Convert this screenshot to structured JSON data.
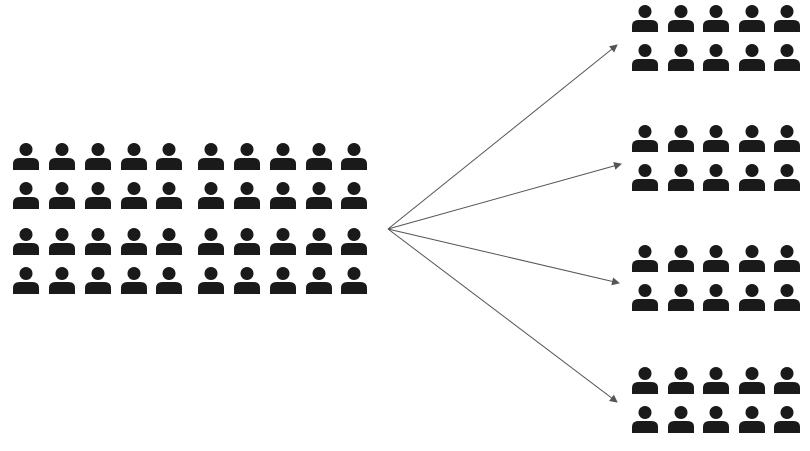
{
  "diagram": {
    "description_visible_text": "",
    "colors": {
      "background": "#ffffff",
      "person": "#1a1a1a",
      "arrow": "#555555"
    },
    "icon": "person-icon",
    "source_group": {
      "blocks": 4,
      "rows_per_block": 2,
      "columns_per_block": 5,
      "people_count": 40
    },
    "target_groups": [
      {
        "id": "group-1",
        "rows": 2,
        "columns": 5,
        "people_count": 10
      },
      {
        "id": "group-2",
        "rows": 2,
        "columns": 5,
        "people_count": 10
      },
      {
        "id": "group-3",
        "rows": 2,
        "columns": 5,
        "people_count": 10
      },
      {
        "id": "group-4",
        "rows": 2,
        "columns": 5,
        "people_count": 10
      }
    ],
    "arrows": 4
  }
}
